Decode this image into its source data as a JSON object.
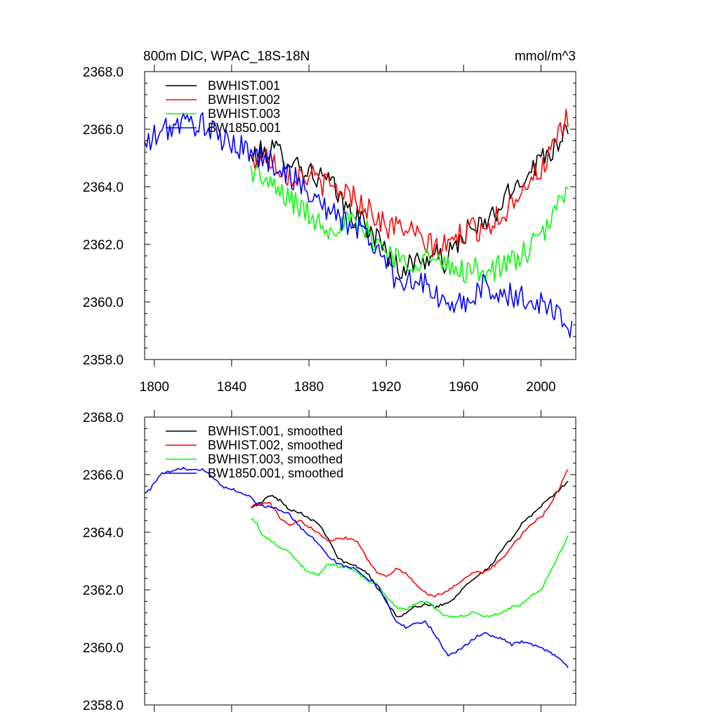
{
  "chart_data": [
    {
      "type": "line",
      "title": "800m DIC, WPAC_18S-18N",
      "units": "mmol/m^3",
      "xlim": [
        1795,
        2018
      ],
      "ylim": [
        2358,
        2368
      ],
      "xticks": [
        1800,
        1840,
        1880,
        1920,
        1960,
        2000
      ],
      "xtick_labels": [
        "1800",
        "1840",
        "1880",
        "1920",
        "1960",
        "2000"
      ],
      "yticks": [
        2358,
        2360,
        2362,
        2364,
        2366,
        2368
      ],
      "ytick_labels": [
        "2358.0",
        "2360.0",
        "2362.0",
        "2364.0",
        "2366.0",
        "2368.0"
      ],
      "legend": "top-left",
      "series": [
        {
          "name": "BWHIST.001",
          "color": "#000000",
          "noise": 0.45,
          "anchors": [
            [
              1850,
              2365.0
            ],
            [
              1860,
              2365.3
            ],
            [
              1870,
              2365.0
            ],
            [
              1880,
              2364.5
            ],
            [
              1890,
              2364.2
            ],
            [
              1900,
              2363.2
            ],
            [
              1910,
              2362.6
            ],
            [
              1920,
              2361.8
            ],
            [
              1926,
              2361.1
            ],
            [
              1935,
              2361.4
            ],
            [
              1945,
              2361.6
            ],
            [
              1950,
              2361.4
            ],
            [
              1955,
              2361.8
            ],
            [
              1960,
              2362.4
            ],
            [
              1970,
              2362.6
            ],
            [
              1980,
              2363.4
            ],
            [
              1990,
              2364.3
            ],
            [
              2000,
              2365.0
            ],
            [
              2008,
              2365.5
            ],
            [
              2014,
              2366.2
            ]
          ]
        },
        {
          "name": "BWHIST.002",
          "color": "#ff0000",
          "noise": 0.45,
          "anchors": [
            [
              1850,
              2364.9
            ],
            [
              1860,
              2365.0
            ],
            [
              1870,
              2364.4
            ],
            [
              1880,
              2364.4
            ],
            [
              1890,
              2364.0
            ],
            [
              1900,
              2363.8
            ],
            [
              1910,
              2363.3
            ],
            [
              1920,
              2362.6
            ],
            [
              1930,
              2362.6
            ],
            [
              1940,
              2362.0
            ],
            [
              1950,
              2361.9
            ],
            [
              1960,
              2362.4
            ],
            [
              1970,
              2362.6
            ],
            [
              1980,
              2363.0
            ],
            [
              1990,
              2364.0
            ],
            [
              2000,
              2364.6
            ],
            [
              2008,
              2365.5
            ],
            [
              2014,
              2366.4
            ]
          ]
        },
        {
          "name": "BWHIST.003",
          "color": "#00ff00",
          "noise": 0.45,
          "anchors": [
            [
              1850,
              2364.6
            ],
            [
              1855,
              2364.4
            ],
            [
              1860,
              2364.0
            ],
            [
              1870,
              2363.6
            ],
            [
              1880,
              2363.0
            ],
            [
              1890,
              2362.6
            ],
            [
              1900,
              2362.8
            ],
            [
              1910,
              2362.4
            ],
            [
              1920,
              2361.8
            ],
            [
              1930,
              2361.3
            ],
            [
              1940,
              2361.6
            ],
            [
              1950,
              2361.2
            ],
            [
              1960,
              2361.1
            ],
            [
              1970,
              2361.1
            ],
            [
              1980,
              2361.2
            ],
            [
              1990,
              2361.6
            ],
            [
              2000,
              2362.2
            ],
            [
              2008,
              2363.2
            ],
            [
              2014,
              2364.2
            ]
          ]
        },
        {
          "name": "BW1850.001",
          "color": "#0000ff",
          "noise": 0.45,
          "anchors": [
            [
              1795,
              2365.4
            ],
            [
              1805,
              2366.0
            ],
            [
              1815,
              2366.2
            ],
            [
              1825,
              2366.2
            ],
            [
              1835,
              2365.6
            ],
            [
              1845,
              2365.4
            ],
            [
              1855,
              2365.0
            ],
            [
              1865,
              2364.7
            ],
            [
              1875,
              2364.1
            ],
            [
              1885,
              2363.5
            ],
            [
              1895,
              2362.9
            ],
            [
              1905,
              2362.6
            ],
            [
              1915,
              2361.9
            ],
            [
              1925,
              2360.8
            ],
            [
              1935,
              2360.8
            ],
            [
              1945,
              2360.3
            ],
            [
              1952,
              2359.7
            ],
            [
              1960,
              2360.0
            ],
            [
              1970,
              2360.5
            ],
            [
              1980,
              2360.3
            ],
            [
              1990,
              2360.1
            ],
            [
              2000,
              2360.0
            ],
            [
              2010,
              2359.6
            ],
            [
              2016,
              2359.0
            ]
          ]
        }
      ]
    },
    {
      "type": "line",
      "title": "",
      "units": "",
      "xlim": [
        1795,
        2018
      ],
      "ylim": [
        2358,
        2368
      ],
      "xticks": [
        1800,
        1840,
        1880,
        1920,
        1960,
        2000
      ],
      "xtick_labels": [],
      "yticks": [
        2358,
        2360,
        2362,
        2364,
        2366,
        2368
      ],
      "ytick_labels": [
        "2358.0",
        "2360.0",
        "2362.0",
        "2364.0",
        "2366.0",
        "2368.0"
      ],
      "legend": "top-left",
      "series": [
        {
          "name": "BWHIST.001, smoothed",
          "color": "#000000",
          "noise": 0.05,
          "anchors": [
            [
              1850,
              2364.9
            ],
            [
              1855,
              2365.0
            ],
            [
              1860,
              2365.3
            ],
            [
              1865,
              2365.1
            ],
            [
              1870,
              2364.8
            ],
            [
              1875,
              2364.7
            ],
            [
              1880,
              2364.5
            ],
            [
              1885,
              2364.3
            ],
            [
              1890,
              2363.8
            ],
            [
              1895,
              2363.1
            ],
            [
              1900,
              2362.9
            ],
            [
              1905,
              2362.8
            ],
            [
              1910,
              2362.6
            ],
            [
              1915,
              2362.1
            ],
            [
              1920,
              2361.6
            ],
            [
              1926,
              2361.05
            ],
            [
              1930,
              2361.2
            ],
            [
              1935,
              2361.4
            ],
            [
              1940,
              2361.5
            ],
            [
              1945,
              2361.4
            ],
            [
              1950,
              2361.5
            ],
            [
              1955,
              2361.7
            ],
            [
              1960,
              2362.1
            ],
            [
              1965,
              2362.4
            ],
            [
              1970,
              2362.6
            ],
            [
              1975,
              2362.9
            ],
            [
              1980,
              2363.4
            ],
            [
              1985,
              2363.8
            ],
            [
              1990,
              2364.3
            ],
            [
              1995,
              2364.6
            ],
            [
              2000,
              2364.9
            ],
            [
              2005,
              2365.2
            ],
            [
              2010,
              2365.5
            ],
            [
              2014,
              2365.8
            ]
          ]
        },
        {
          "name": "BWHIST.002, smoothed",
          "color": "#ff0000",
          "noise": 0.05,
          "anchors": [
            [
              1850,
              2364.9
            ],
            [
              1855,
              2365.0
            ],
            [
              1860,
              2365.0
            ],
            [
              1865,
              2364.5
            ],
            [
              1870,
              2364.2
            ],
            [
              1875,
              2364.4
            ],
            [
              1880,
              2364.2
            ],
            [
              1885,
              2364.0
            ],
            [
              1890,
              2363.7
            ],
            [
              1895,
              2363.8
            ],
            [
              1900,
              2363.8
            ],
            [
              1905,
              2363.7
            ],
            [
              1910,
              2363.1
            ],
            [
              1915,
              2362.6
            ],
            [
              1920,
              2362.5
            ],
            [
              1925,
              2362.7
            ],
            [
              1930,
              2362.6
            ],
            [
              1935,
              2362.2
            ],
            [
              1940,
              2361.9
            ],
            [
              1945,
              2361.8
            ],
            [
              1950,
              2361.9
            ],
            [
              1955,
              2362.1
            ],
            [
              1960,
              2362.4
            ],
            [
              1965,
              2362.6
            ],
            [
              1970,
              2362.6
            ],
            [
              1975,
              2362.8
            ],
            [
              1980,
              2363.1
            ],
            [
              1985,
              2363.5
            ],
            [
              1990,
              2363.9
            ],
            [
              1995,
              2364.3
            ],
            [
              2000,
              2364.5
            ],
            [
              2005,
              2365.0
            ],
            [
              2010,
              2365.6
            ],
            [
              2014,
              2366.2
            ]
          ]
        },
        {
          "name": "BWHIST.003, smoothed",
          "color": "#00ff00",
          "noise": 0.05,
          "anchors": [
            [
              1850,
              2364.5
            ],
            [
              1853,
              2364.3
            ],
            [
              1856,
              2363.9
            ],
            [
              1860,
              2363.7
            ],
            [
              1865,
              2363.5
            ],
            [
              1870,
              2363.3
            ],
            [
              1875,
              2362.9
            ],
            [
              1880,
              2362.6
            ],
            [
              1885,
              2362.5
            ],
            [
              1890,
              2362.9
            ],
            [
              1895,
              2362.8
            ],
            [
              1900,
              2362.8
            ],
            [
              1905,
              2362.6
            ],
            [
              1910,
              2362.3
            ],
            [
              1915,
              2362.2
            ],
            [
              1920,
              2361.8
            ],
            [
              1925,
              2361.4
            ],
            [
              1930,
              2361.3
            ],
            [
              1935,
              2361.5
            ],
            [
              1940,
              2361.6
            ],
            [
              1945,
              2361.4
            ],
            [
              1950,
              2361.1
            ],
            [
              1955,
              2361.05
            ],
            [
              1960,
              2361.1
            ],
            [
              1965,
              2361.2
            ],
            [
              1970,
              2361.1
            ],
            [
              1975,
              2361.1
            ],
            [
              1980,
              2361.2
            ],
            [
              1985,
              2361.4
            ],
            [
              1990,
              2361.5
            ],
            [
              1995,
              2361.8
            ],
            [
              2000,
              2362.0
            ],
            [
              2005,
              2362.6
            ],
            [
              2010,
              2363.3
            ],
            [
              2014,
              2363.9
            ]
          ]
        },
        {
          "name": "BW1850.001, smoothed",
          "color": "#0000ff",
          "noise": 0.05,
          "anchors": [
            [
              1795,
              2365.4
            ],
            [
              1798,
              2365.5
            ],
            [
              1803,
              2366.0
            ],
            [
              1808,
              2366.1
            ],
            [
              1815,
              2366.2
            ],
            [
              1820,
              2366.2
            ],
            [
              1825,
              2366.2
            ],
            [
              1830,
              2365.9
            ],
            [
              1835,
              2365.6
            ],
            [
              1840,
              2365.5
            ],
            [
              1845,
              2365.4
            ],
            [
              1850,
              2365.2
            ],
            [
              1855,
              2364.9
            ],
            [
              1860,
              2364.9
            ],
            [
              1865,
              2364.8
            ],
            [
              1870,
              2364.6
            ],
            [
              1875,
              2364.2
            ],
            [
              1880,
              2363.9
            ],
            [
              1885,
              2363.6
            ],
            [
              1890,
              2363.2
            ],
            [
              1895,
              2362.9
            ],
            [
              1900,
              2362.8
            ],
            [
              1905,
              2362.7
            ],
            [
              1910,
              2362.4
            ],
            [
              1915,
              2362.2
            ],
            [
              1920,
              2361.6
            ],
            [
              1925,
              2360.9
            ],
            [
              1930,
              2360.7
            ],
            [
              1935,
              2360.8
            ],
            [
              1940,
              2360.9
            ],
            [
              1945,
              2360.5
            ],
            [
              1950,
              2359.9
            ],
            [
              1952,
              2359.7
            ],
            [
              1955,
              2359.8
            ],
            [
              1960,
              2360.0
            ],
            [
              1965,
              2360.3
            ],
            [
              1970,
              2360.5
            ],
            [
              1975,
              2360.4
            ],
            [
              1980,
              2360.3
            ],
            [
              1985,
              2360.1
            ],
            [
              1990,
              2360.2
            ],
            [
              1995,
              2360.1
            ],
            [
              2000,
              2360.0
            ],
            [
              2005,
              2359.8
            ],
            [
              2010,
              2359.6
            ],
            [
              2014,
              2359.3
            ]
          ]
        }
      ]
    }
  ]
}
